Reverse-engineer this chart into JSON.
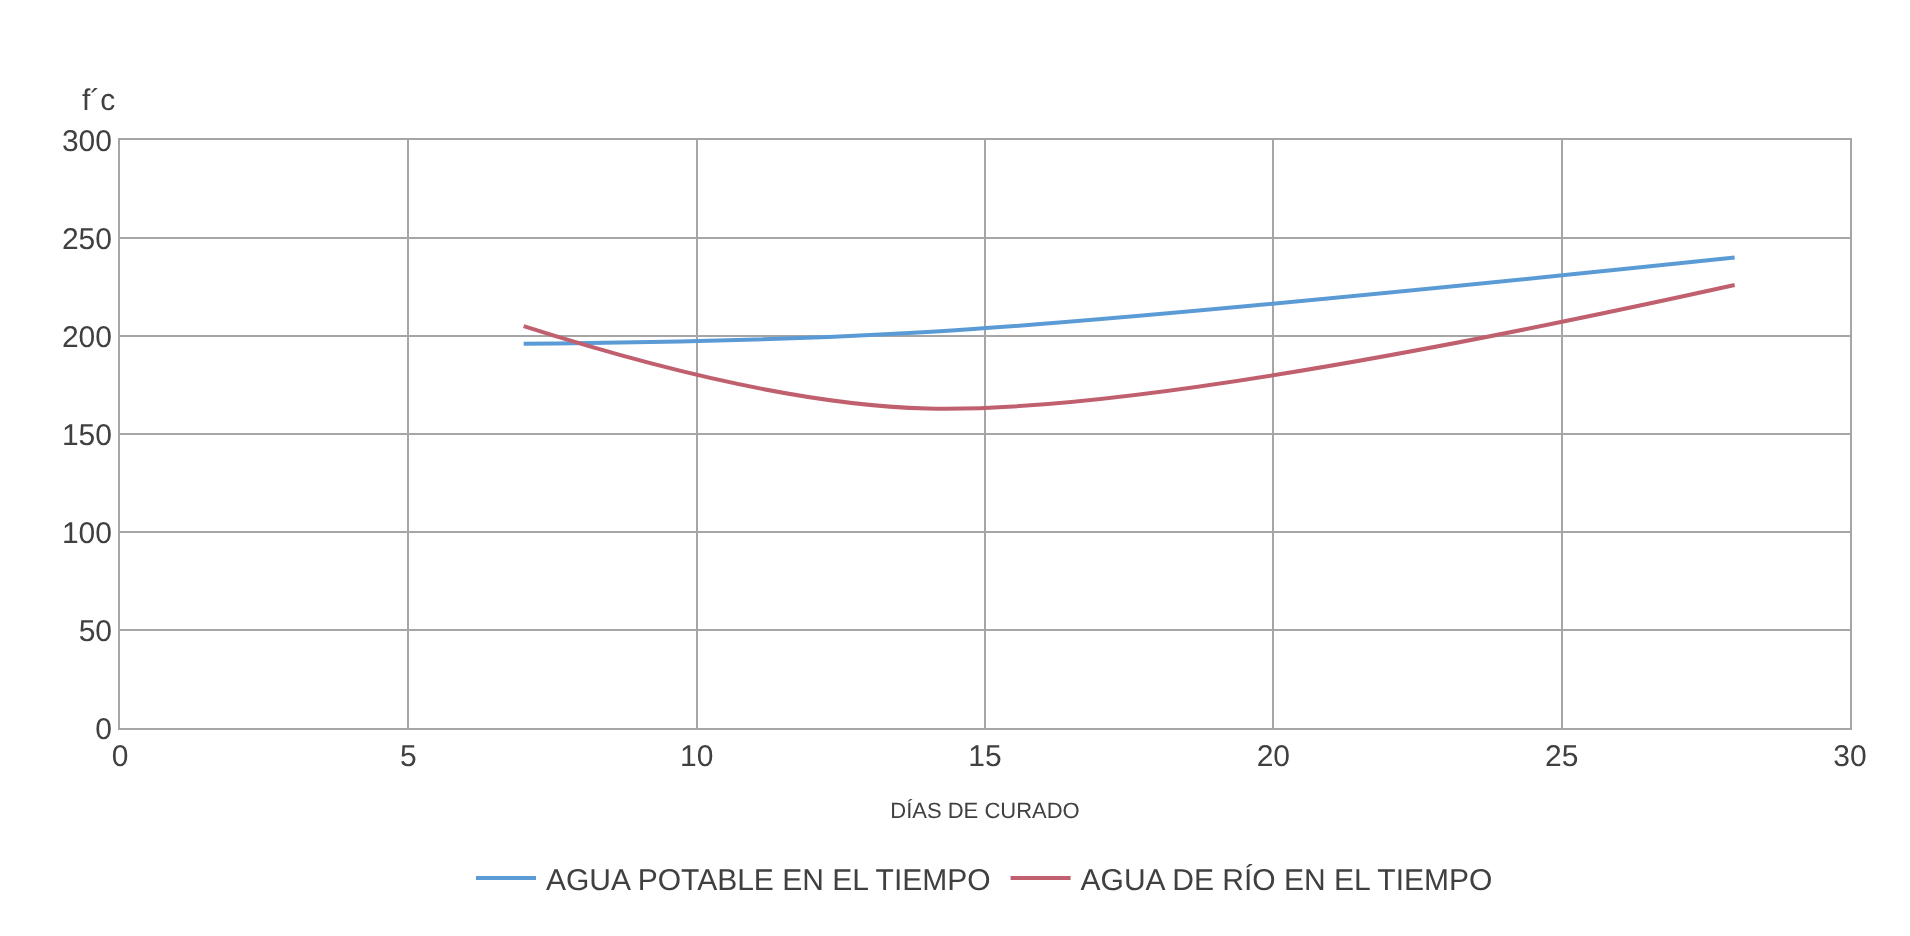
{
  "chart_data": {
    "type": "line",
    "ylabel": "f´c",
    "xlabel": "DÍAS DE CURADO",
    "xlim": [
      0,
      30
    ],
    "xticks": [
      0,
      5,
      10,
      15,
      20,
      25,
      30
    ],
    "ylim": [
      0,
      300
    ],
    "yticks": [
      0,
      50,
      100,
      150,
      200,
      250,
      300
    ],
    "grid": true,
    "legend": "bottom",
    "marker": "none",
    "line_style": "solid",
    "series": [
      {
        "name": "AGUA POTABLE EN EL TIEMPO",
        "color": "#5b9bd5",
        "x": [
          7,
          14,
          28
        ],
        "values": [
          196,
          202,
          240
        ]
      },
      {
        "name": "AGUA DE RÍO EN EL TIEMPO",
        "color": "#c0606e",
        "x": [
          7,
          14,
          28
        ],
        "values": [
          205,
          163,
          226
        ]
      }
    ]
  }
}
